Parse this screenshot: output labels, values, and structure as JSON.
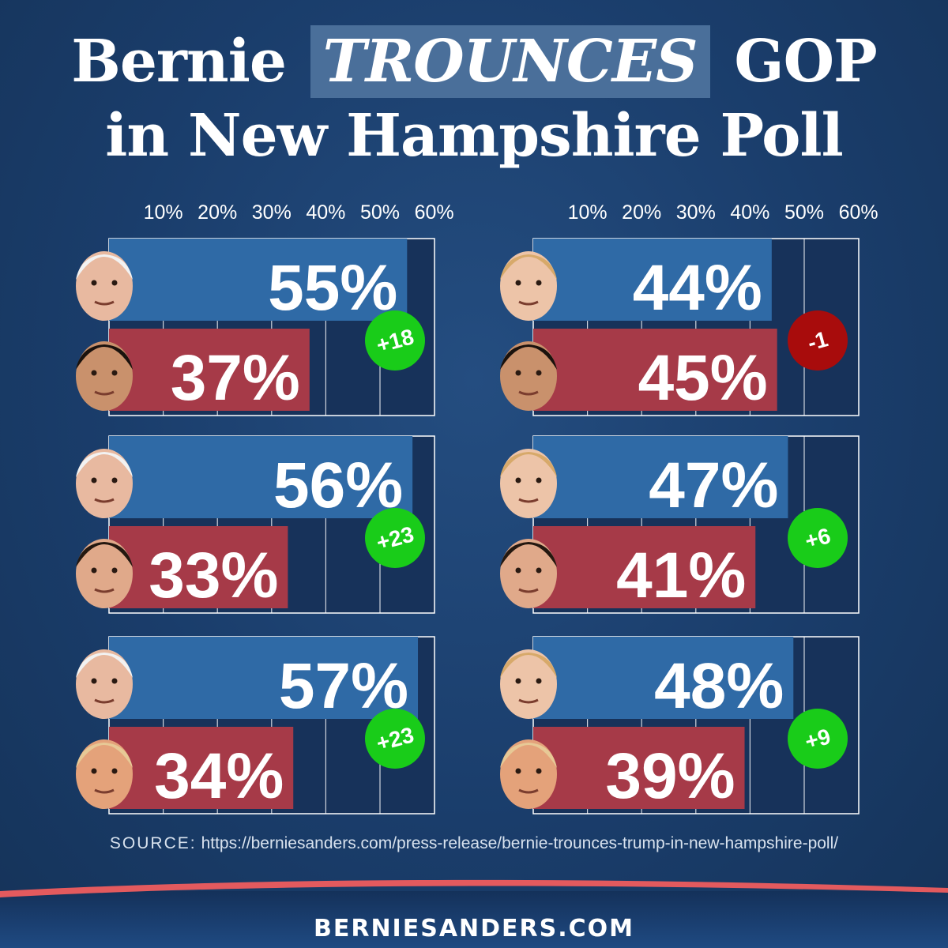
{
  "title": {
    "line1_pre": "Bernie",
    "line1_highlight": "TROUNCES",
    "line1_post": "GOP",
    "line2": "in New Hampshire Poll"
  },
  "colors": {
    "dem_bar": "#2f6aa6",
    "gop_bar": "#a63a48",
    "chart_bg": "#17325a",
    "positive_badge": "#19cc19",
    "negative_badge": "#a80c0c"
  },
  "chart_data": [
    {
      "type": "bar",
      "x_ticks": [
        "10%",
        "20%",
        "30%",
        "40%",
        "50%",
        "60%"
      ],
      "xlim": [
        0,
        60
      ],
      "matchups": [
        {
          "dem": {
            "face": "bernie-sanders-photo",
            "value": 55,
            "label": "55%"
          },
          "gop": {
            "face": "marco-rubio-photo",
            "value": 37,
            "label": "37%"
          },
          "margin": "+18",
          "margin_value": 18
        },
        {
          "dem": {
            "face": "bernie-sanders-photo",
            "value": 56,
            "label": "56%"
          },
          "gop": {
            "face": "ted-cruz-photo",
            "value": 33,
            "label": "33%"
          },
          "margin": "+23",
          "margin_value": 23
        },
        {
          "dem": {
            "face": "bernie-sanders-photo",
            "value": 57,
            "label": "57%"
          },
          "gop": {
            "face": "donald-trump-photo",
            "value": 34,
            "label": "34%"
          },
          "margin": "+23",
          "margin_value": 23
        }
      ]
    },
    {
      "type": "bar",
      "x_ticks": [
        "10%",
        "20%",
        "30%",
        "40%",
        "50%",
        "60%"
      ],
      "xlim": [
        0,
        60
      ],
      "matchups": [
        {
          "dem": {
            "face": "hillary-clinton-photo",
            "value": 44,
            "label": "44%"
          },
          "gop": {
            "face": "marco-rubio-photo",
            "value": 45,
            "label": "45%"
          },
          "margin": "-1",
          "margin_value": -1
        },
        {
          "dem": {
            "face": "hillary-clinton-photo",
            "value": 47,
            "label": "47%"
          },
          "gop": {
            "face": "ted-cruz-photo",
            "value": 41,
            "label": "41%"
          },
          "margin": "+6",
          "margin_value": 6
        },
        {
          "dem": {
            "face": "hillary-clinton-photo",
            "value": 48,
            "label": "48%"
          },
          "gop": {
            "face": "donald-trump-photo",
            "value": 39,
            "label": "39%"
          },
          "margin": "+9",
          "margin_value": 9
        }
      ]
    }
  ],
  "source": {
    "label": "SOURCE:",
    "url": "https://berniesanders.com/press-release/bernie-trounces-trump-in-new-hampshire-poll/"
  },
  "footer": {
    "site": "BERNIESANDERS.COM"
  }
}
